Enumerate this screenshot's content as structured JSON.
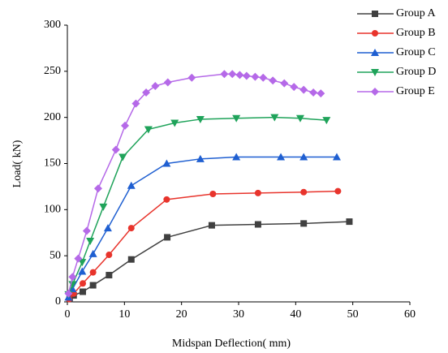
{
  "chart_data": {
    "type": "line",
    "x_label": "Midspan Deflection(   mm)",
    "y_label": "Load(   kN)",
    "xlim": [
      0,
      60
    ],
    "xticks": [
      0,
      10,
      20,
      30,
      40,
      50,
      60
    ],
    "ylim": [
      0,
      300
    ],
    "yticks": [
      0,
      50,
      100,
      150,
      200,
      250,
      300
    ],
    "legend": "top right",
    "series": [
      {
        "name": "Group A",
        "color": "#404040",
        "marker": "square",
        "x": [
          0.4,
          1.1,
          2.7,
          4.5,
          7.3,
          11.2,
          17.5,
          25.3,
          33.4,
          41.4,
          49.4
        ],
        "values": [
          3,
          7,
          11,
          18,
          29,
          46,
          70,
          83,
          84,
          85,
          87
        ]
      },
      {
        "name": "Group B",
        "color": "#e8342c",
        "marker": "circle",
        "x": [
          0.3,
          1.1,
          2.7,
          4.5,
          7.3,
          11.2,
          17.4,
          25.5,
          33.4,
          41.4,
          47.4
        ],
        "values": [
          3,
          9,
          20,
          32,
          51,
          80,
          111,
          117,
          118,
          119,
          120
        ]
      },
      {
        "name": "Group C",
        "color": "#1f5fd1",
        "marker": "triangle",
        "x": [
          0.2,
          0.9,
          2.6,
          4.5,
          7.1,
          11.2,
          17.4,
          23.3,
          29.6,
          37.4,
          41.4,
          47.2
        ],
        "values": [
          5,
          14,
          33,
          52,
          80,
          126,
          150,
          155,
          157,
          157,
          157,
          157
        ]
      },
      {
        "name": "Group D",
        "color": "#1fa35a",
        "marker": "triangle-down",
        "x": [
          0.2,
          0.9,
          2.6,
          4.0,
          6.3,
          9.7,
          14.2,
          18.8,
          23.3,
          29.6,
          36.3,
          40.8,
          45.4
        ],
        "values": [
          8,
          19,
          43,
          66,
          103,
          157,
          187,
          194,
          198,
          199,
          200,
          199,
          197
        ]
      },
      {
        "name": "Group E",
        "color": "#b569e8",
        "marker": "diamond",
        "x": [
          0.2,
          0.9,
          1.9,
          3.4,
          5.4,
          8.5,
          10.1,
          12.0,
          13.8,
          15.4,
          17.6,
          21.8,
          27.5,
          28.9,
          30.2,
          31.4,
          32.9,
          34.3,
          36.0,
          38.0,
          39.7,
          41.4,
          43.1,
          44.4
        ],
        "values": [
          9,
          27,
          47,
          77,
          123,
          165,
          191,
          215,
          227,
          234,
          238,
          243,
          247,
          247,
          246,
          245,
          244,
          243,
          240,
          237,
          233,
          230,
          227,
          226
        ]
      }
    ]
  }
}
